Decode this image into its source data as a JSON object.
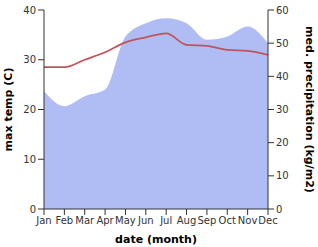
{
  "chart_data": {
    "type": "line",
    "x_label": "date (month)",
    "y_label": "max temp (C)",
    "y2_label": "med. precipitation (kg/m2)",
    "categories": [
      "Jan",
      "Feb",
      "Mar",
      "Apr",
      "May",
      "Jun",
      "Jul",
      "Aug",
      "Sep",
      "Oct",
      "Nov",
      "Dec"
    ],
    "ylim": [
      0,
      40
    ],
    "yticks": [
      0,
      10,
      20,
      30,
      40
    ],
    "y2lim": [
      0,
      60
    ],
    "y2ticks": [
      0,
      10,
      20,
      30,
      40,
      50,
      60
    ],
    "grid": false,
    "series": [
      {
        "type": "area",
        "axis": "y2",
        "color": "#b0bdf5",
        "values": [
          35.5,
          31,
          34,
          36,
          52,
          56,
          57.5,
          56,
          51,
          52,
          55,
          50
        ]
      },
      {
        "type": "line",
        "axis": "y",
        "color": "#c0545a",
        "values": [
          28.5,
          28.5,
          30,
          31.5,
          33.5,
          34.5,
          35.3,
          33,
          32.8,
          32,
          31.8,
          31
        ]
      }
    ]
  }
}
